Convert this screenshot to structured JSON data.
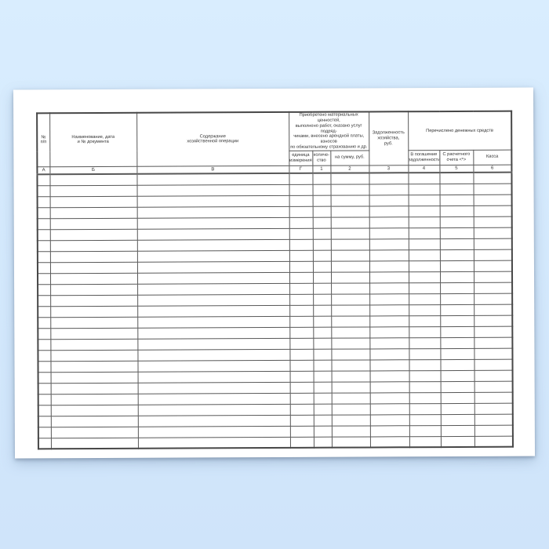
{
  "page": {
    "background_top_color": "#d9edfe",
    "background_bottom_color": "#cfe4fa",
    "paper_color": "#ffffff",
    "line_color": "#585858",
    "text_color": "#333333"
  },
  "table": {
    "row_count": 25,
    "headers": {
      "num": "№\nп/п",
      "doc": "Наименование, дата\nи № документа",
      "content": "Содержание\nхозяйственной операции",
      "acquired_group": "Приобретено материальных ценностей,\nвыполнено работ, оказано услуг подряд-\nчиками, внесено арендной платы, взносов\nпо обязательному страхованию и др.",
      "unit": "единица\nизмерения",
      "qty": "количе-\nство",
      "sum": "на сумму, руб.",
      "debt": "Задолженность\nхозяйства,\nруб.",
      "transferred_group": "Перечислено денежных средств",
      "repayment": "В погашение\nзадолженности",
      "account": "С расчетного\nсчета <*>",
      "cash": "Касса"
    },
    "index_row": [
      "А",
      "Б",
      "В",
      "Г",
      "1",
      "2",
      "3",
      "4",
      "5",
      "6"
    ]
  }
}
